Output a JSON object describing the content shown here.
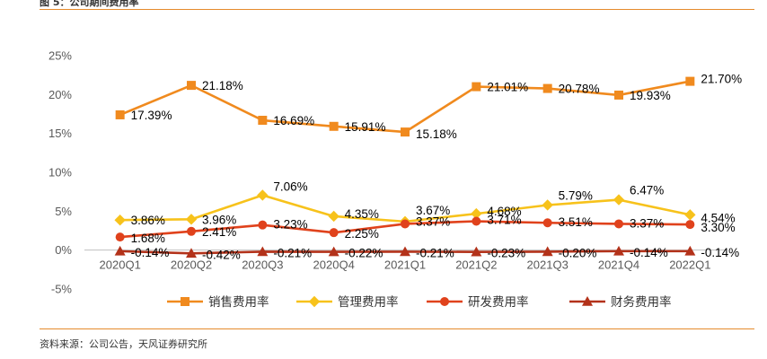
{
  "figure_title": "图 5：公司期间费用率",
  "source": "资料来源：公司公告，天风证券研究所",
  "chart_data": {
    "type": "line",
    "categories": [
      "2020Q1",
      "2020Q2",
      "2020Q3",
      "2020Q4",
      "2021Q1",
      "2021Q2",
      "2021Q3",
      "2021Q4",
      "2022Q1"
    ],
    "ylim": [
      -5,
      25
    ],
    "yticks": [
      -5,
      0,
      5,
      10,
      15,
      20,
      25
    ],
    "ytick_labels": [
      "-5%",
      "0%",
      "5%",
      "10%",
      "15%",
      "20%",
      "25%"
    ],
    "legend_position": "bottom",
    "series": [
      {
        "name": "销售费用率",
        "color": "#f08a1e",
        "marker": "square",
        "values": [
          17.39,
          21.18,
          16.69,
          15.91,
          15.18,
          21.01,
          20.78,
          19.93,
          21.7
        ],
        "labels": [
          "17.39%",
          "21.18%",
          "16.69%",
          "15.91%",
          "15.18%",
          "21.01%",
          "20.78%",
          "19.93%",
          "21.70%"
        ]
      },
      {
        "name": "管理费用率",
        "color": "#f7c21b",
        "marker": "diamond",
        "values": [
          3.86,
          3.96,
          7.06,
          4.35,
          3.67,
          4.68,
          5.79,
          6.47,
          4.54
        ],
        "labels": [
          "3.86%",
          "3.96%",
          "7.06%",
          "4.35%",
          "3.67%",
          "4.68%",
          "5.79%",
          "6.47%",
          "4.54%"
        ]
      },
      {
        "name": "研发费用率",
        "color": "#e0421c",
        "marker": "circle",
        "values": [
          1.68,
          2.41,
          3.23,
          2.25,
          3.37,
          3.71,
          3.51,
          3.37,
          3.3
        ],
        "labels": [
          "1.68%",
          "2.41%",
          "3.23%",
          "2.25%",
          "3.37%",
          "3.71%",
          "3.51%",
          "3.37%",
          "3.30%"
        ]
      },
      {
        "name": "财务费用率",
        "color": "#b3321a",
        "marker": "triangle",
        "values": [
          -0.14,
          -0.42,
          -0.21,
          -0.22,
          -0.21,
          -0.23,
          -0.2,
          -0.14,
          -0.14
        ],
        "labels": [
          "-0.14%",
          "-0.42%",
          "-0.21%",
          "-0.22%",
          "-0.21%",
          "-0.23%",
          "-0.20%",
          "-0.14%",
          "-0.14%"
        ]
      }
    ]
  }
}
